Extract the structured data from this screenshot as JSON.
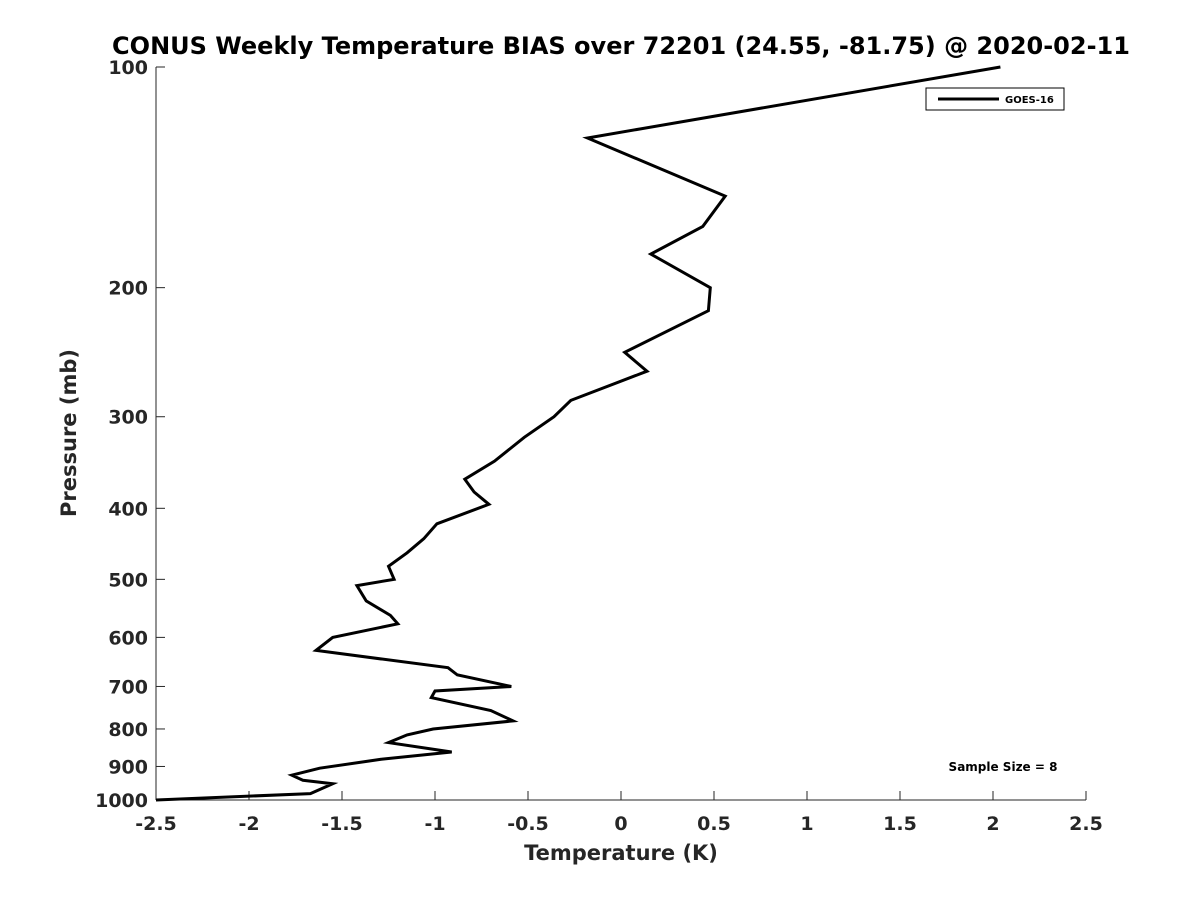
{
  "chart_data": {
    "type": "line",
    "title": "CONUS Weekly Temperature BIAS over 72201 (24.55, -81.75) @ 2020-02-11",
    "xlabel": "Temperature (K)",
    "ylabel": "Pressure (mb)",
    "xlim": [
      -2.5,
      2.5
    ],
    "ylim": [
      100,
      1000
    ],
    "y_scale": "log",
    "y_reversed": true,
    "x_ticks": [
      "-2.5",
      "-2",
      "-1.5",
      "-1",
      "-0.5",
      "0",
      "0.5",
      "1",
      "1.5",
      "2",
      "2.5"
    ],
    "y_ticks": [
      "100",
      "200",
      "300",
      "400",
      "500",
      "600",
      "700",
      "800",
      "900",
      "1000"
    ],
    "grid": false,
    "legend": {
      "position": "top-right",
      "entries": [
        "GOES-16"
      ]
    },
    "annotation": "Sample Size = 8",
    "series": [
      {
        "name": "GOES-16",
        "color": "#000000",
        "points": [
          [
            2.04,
            100
          ],
          [
            -0.18,
            125
          ],
          [
            0.56,
            150
          ],
          [
            0.44,
            165
          ],
          [
            0.16,
            180
          ],
          [
            0.48,
            200
          ],
          [
            0.47,
            215
          ],
          [
            0.02,
            245
          ],
          [
            0.14,
            260
          ],
          [
            -0.27,
            285
          ],
          [
            -0.36,
            300
          ],
          [
            -0.52,
            320
          ],
          [
            -0.68,
            345
          ],
          [
            -0.84,
            365
          ],
          [
            -0.79,
            380
          ],
          [
            -0.71,
            395
          ],
          [
            -0.99,
            420
          ],
          [
            -1.06,
            440
          ],
          [
            -1.15,
            460
          ],
          [
            -1.25,
            480
          ],
          [
            -1.22,
            500
          ],
          [
            -1.42,
            510
          ],
          [
            -1.37,
            535
          ],
          [
            -1.24,
            560
          ],
          [
            -1.2,
            575
          ],
          [
            -1.55,
            600
          ],
          [
            -1.64,
            625
          ],
          [
            -0.93,
            660
          ],
          [
            -0.88,
            675
          ],
          [
            -0.59,
            700
          ],
          [
            -1.0,
            710
          ],
          [
            -1.02,
            725
          ],
          [
            -0.7,
            755
          ],
          [
            -0.58,
            780
          ],
          [
            -1.01,
            800
          ],
          [
            -1.15,
            815
          ],
          [
            -1.25,
            835
          ],
          [
            -0.91,
            860
          ],
          [
            -1.29,
            880
          ],
          [
            -1.62,
            905
          ],
          [
            -1.77,
            925
          ],
          [
            -1.71,
            940
          ],
          [
            -1.55,
            950
          ],
          [
            -1.67,
            980
          ],
          [
            -2.5,
            1000
          ]
        ]
      }
    ]
  }
}
